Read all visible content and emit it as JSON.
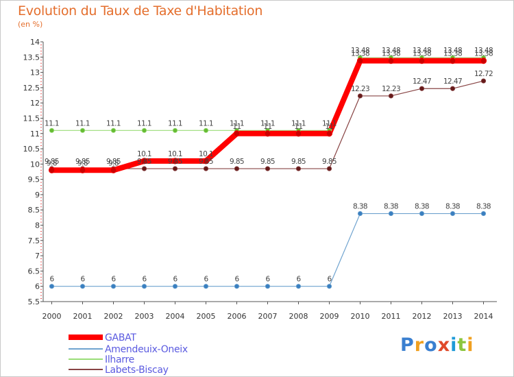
{
  "header": {
    "title": "Evolution du Taux de Taxe d'Habitation",
    "subtitle": "(en %)"
  },
  "logo": {
    "text": "Proxiti",
    "colors": [
      "#3a7fd0",
      "#f0a020",
      "#3a7fd0",
      "#e04a2a",
      "#1e9ad8",
      "#8cc63f",
      "#f0a020"
    ]
  },
  "chart_data": {
    "type": "line",
    "title": "Evolution du Taux de Taxe d'Habitation",
    "subtitle": "(en %)",
    "xlabel": "",
    "ylabel": "",
    "x": [
      "2000",
      "2001",
      "2002",
      "2003",
      "2004",
      "2005",
      "2006",
      "2007",
      "2008",
      "2009",
      "2010",
      "2011",
      "2012",
      "2013",
      "2014"
    ],
    "ylim": [
      5.5,
      14
    ],
    "yticks": [
      "5.5",
      "6",
      "6.5",
      "7",
      "7.5",
      "8",
      "8.5",
      "9",
      "9.5",
      "10",
      "10.5",
      "11",
      "11.5",
      "12",
      "12.5",
      "13",
      "13.5",
      "14"
    ],
    "grid": false,
    "legend_position": "bottom-left",
    "series": [
      {
        "name": "GABAT",
        "color": "#ff0000",
        "marker_color": "#cc0000",
        "line_width": 8,
        "values": [
          9.8,
          9.8,
          9.8,
          10.1,
          10.1,
          10.1,
          11,
          11,
          11,
          11,
          13.38,
          13.38,
          13.38,
          13.38,
          13.38
        ],
        "labels": [
          "9.8",
          "9.8",
          "9.8",
          "10.1",
          "10.1",
          "10.1",
          "11",
          "11",
          "11",
          "11",
          "13.38",
          "13.38",
          "13.38",
          "13.38",
          "13.38"
        ]
      },
      {
        "name": "Amendeuix-Oneix",
        "color": "#6fa3cf",
        "marker_color": "#3a7fc0",
        "line_width": 1.2,
        "values": [
          6,
          6,
          6,
          6,
          6,
          6,
          6,
          6,
          6,
          6,
          8.38,
          8.38,
          8.38,
          8.38,
          8.38
        ],
        "labels": [
          "6",
          "6",
          "6",
          "6",
          "6",
          "6",
          "6",
          "6",
          "6",
          "6",
          "8.38",
          "8.38",
          "8.38",
          "8.38",
          "8.38"
        ]
      },
      {
        "name": "Ilharre",
        "color": "#99dd77",
        "marker_color": "#66bb33",
        "line_width": 1.2,
        "values": [
          11.1,
          11.1,
          11.1,
          11.1,
          11.1,
          11.1,
          11.1,
          11.1,
          11.1,
          11.1,
          13.48,
          13.48,
          13.48,
          13.48,
          13.48
        ],
        "labels": [
          "11.1",
          "11.1",
          "11.1",
          "11.1",
          "11.1",
          "11.1",
          "11.1",
          "11.1",
          "11.1",
          "11.1",
          "13.48",
          "13.48",
          "13.48",
          "13.48",
          "13.48"
        ]
      },
      {
        "name": "Labets-Biscay",
        "color": "#884444",
        "marker_color": "#661a1a",
        "line_width": 1.2,
        "values": [
          9.85,
          9.85,
          9.85,
          9.85,
          9.85,
          9.85,
          9.85,
          9.85,
          9.85,
          9.85,
          12.23,
          12.23,
          12.47,
          12.47,
          12.72
        ],
        "labels": [
          "9.85",
          "9.85",
          "9.85",
          "9.85",
          "9.85",
          "9.85",
          "9.85",
          "9.85",
          "9.85",
          "9.85",
          "12.23",
          "12.23",
          "12.47",
          "12.47",
          "12.72"
        ]
      }
    ]
  }
}
